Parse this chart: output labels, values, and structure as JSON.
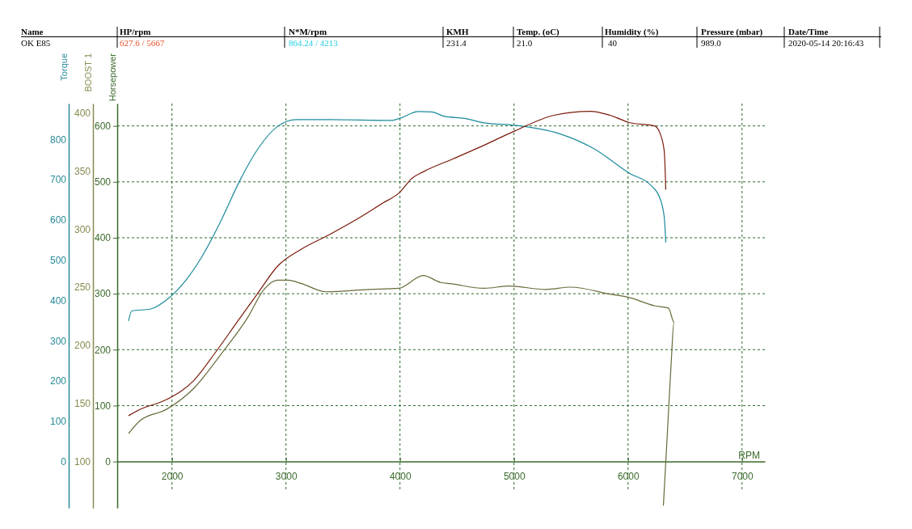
{
  "chart_data": {
    "type": "line",
    "xlabel": "RPM",
    "ylabel": "Horsepower",
    "y2label": "Torque",
    "y3label": "BOOST 1",
    "xlim": [
      1520,
      7200
    ],
    "xticks": [
      2000,
      3000,
      4000,
      5000,
      6000,
      7000
    ],
    "ylim": [
      -83,
      640
    ],
    "yticks": [
      0,
      100,
      200,
      300,
      400,
      500,
      600
    ],
    "y2lim": [
      -115,
      889
    ],
    "y2ticks": [
      0,
      100,
      200,
      300,
      400,
      500,
      600,
      700,
      800
    ],
    "y3lim": [
      60,
      408
    ],
    "y3ticks": [
      100,
      150,
      200,
      250,
      300,
      350,
      400
    ],
    "grid": true,
    "line_style": "solid",
    "annotations": [
      "Name",
      "HP/rpm",
      "N*M/rpm",
      "KMH",
      "Temp. (oC)",
      "Humidity (%)",
      "Pressure (mbar)",
      "Date/Time",
      "OK E85",
      "627.6 / 5667",
      "864.24 / 4213",
      "231.4",
      "21.0",
      "40",
      "989.0",
      "2020-05-14 20:16:43"
    ],
    "series": [
      {
        "color": "#1a8a9a",
        "axis": "y2",
        "x": [
          1619,
          1647,
          1813,
          1955,
          2121,
          2263,
          2428,
          2594,
          2760,
          2925,
          3091,
          3375,
          3920,
          4015,
          4157,
          4276,
          4393,
          4567,
          4738,
          5008,
          5400,
          5694,
          6012,
          6208,
          6282,
          6318,
          6331
        ],
        "values": [
          349,
          374,
          379,
          402,
          450,
          509,
          597,
          697,
          779,
          832,
          849,
          849,
          847,
          854,
          869,
          868,
          857,
          852,
          841,
          835,
          814,
          778,
          716,
          684,
          652,
          606,
          544
        ]
      },
      {
        "color": "#7a1a0a",
        "axis": "y",
        "x": [
          1619,
          1718,
          1955,
          2192,
          2381,
          2570,
          2760,
          2925,
          3138,
          3375,
          3612,
          3849,
          3991,
          4109,
          4204,
          4464,
          4689,
          5008,
          5351,
          5670,
          5841,
          6012,
          6233,
          6282,
          6318,
          6331
        ],
        "values": [
          82,
          93,
          111,
          145,
          195,
          249,
          303,
          349,
          380,
          405,
          432,
          462,
          480,
          507,
          518,
          541,
          561,
          591,
          619,
          626,
          619,
          606,
          600,
          586,
          554,
          486
        ]
      },
      {
        "color": "#6a6a3a",
        "axis": "y3",
        "x": [
          1619,
          1718,
          1955,
          2192,
          2428,
          2665,
          2807,
          2925,
          3020,
          3138,
          3351,
          3730,
          3991,
          4204,
          4358,
          4445,
          4738,
          4959,
          5277,
          5498,
          5841,
          6012,
          6233,
          6355,
          6403,
          6379,
          6342,
          6310
        ],
        "values": [
          124,
          135,
          145,
          163,
          192,
          224,
          248,
          256,
          256,
          253,
          246,
          248,
          249,
          260,
          254,
          253,
          249,
          251,
          248,
          250,
          244,
          241,
          234,
          232,
          220,
          186,
          119,
          62
        ]
      }
    ]
  }
}
